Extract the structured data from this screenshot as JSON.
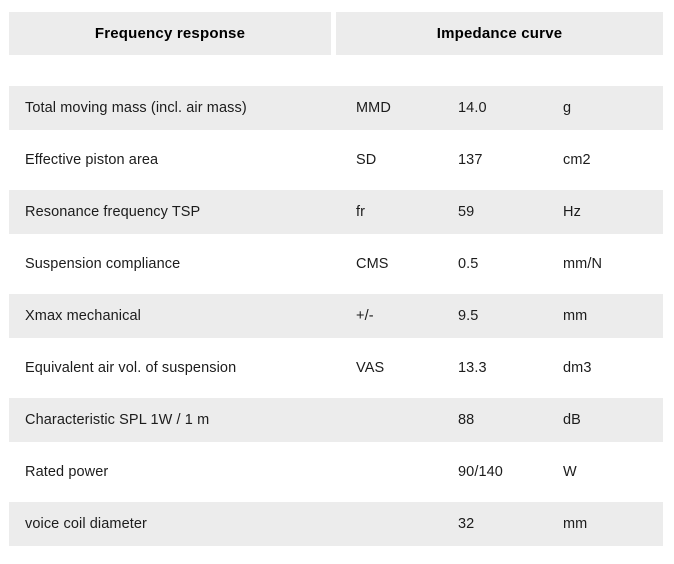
{
  "tabs": [
    {
      "label": "Frequency response"
    },
    {
      "label": "Impedance curve"
    }
  ],
  "table": {
    "rows": [
      {
        "label": "Total moving mass (incl. air mass)",
        "symbol": "MMD",
        "value": "14.0",
        "unit": "g"
      },
      {
        "label": "Effective piston area",
        "symbol": "SD",
        "value": "137",
        "unit": "cm2"
      },
      {
        "label": "Resonance frequency TSP",
        "symbol": "fr",
        "value": "59",
        "unit": "Hz"
      },
      {
        "label": "Suspension compliance",
        "symbol": "CMS",
        "value": "0.5",
        "unit": "mm/N"
      },
      {
        "label": "Xmax mechanical",
        "symbol": "+/-",
        "value": "9.5",
        "unit": "mm"
      },
      {
        "label": "Equivalent air vol. of suspension",
        "symbol": "VAS",
        "value": "13.3",
        "unit": "dm3"
      },
      {
        "label": "Characteristic SPL 1W / 1 m",
        "symbol": "",
        "value": "88",
        "unit": "dB"
      },
      {
        "label": "Rated power",
        "symbol": "",
        "value": "90/140",
        "unit": "W"
      },
      {
        "label": "voice coil diameter",
        "symbol": "",
        "value": "32",
        "unit": "mm"
      }
    ]
  },
  "colors": {
    "stripe": "#ececec",
    "text": "#1c1c1c",
    "header-text": "#000000",
    "bg": "#ffffff"
  }
}
